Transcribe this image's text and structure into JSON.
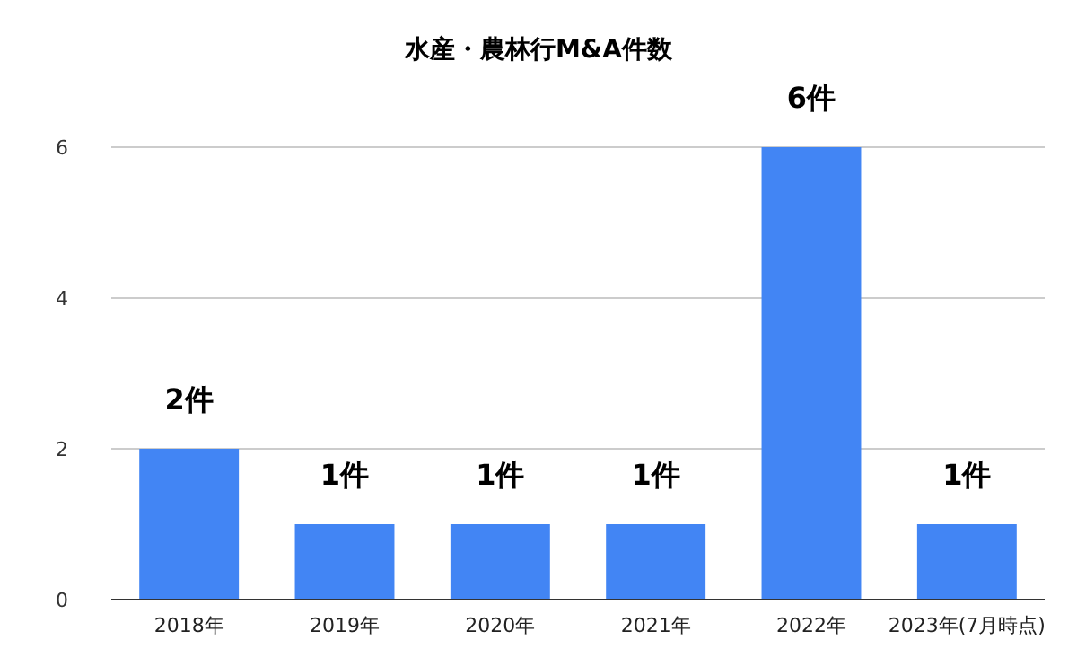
{
  "chart_data": {
    "type": "bar",
    "title": "水産・農林行M&A件数",
    "categories": [
      "2018年",
      "2019年",
      "2020年",
      "2021年",
      "2022年",
      "2023年(7月時点)"
    ],
    "values": [
      2,
      1,
      1,
      1,
      6,
      1
    ],
    "value_labels": [
      "2件",
      "1件",
      "1件",
      "1件",
      "6件",
      "1件"
    ],
    "color": "#4285f4",
    "ylim": [
      0,
      6
    ],
    "yticks": [
      0,
      2,
      4,
      6
    ],
    "grid": "y"
  }
}
